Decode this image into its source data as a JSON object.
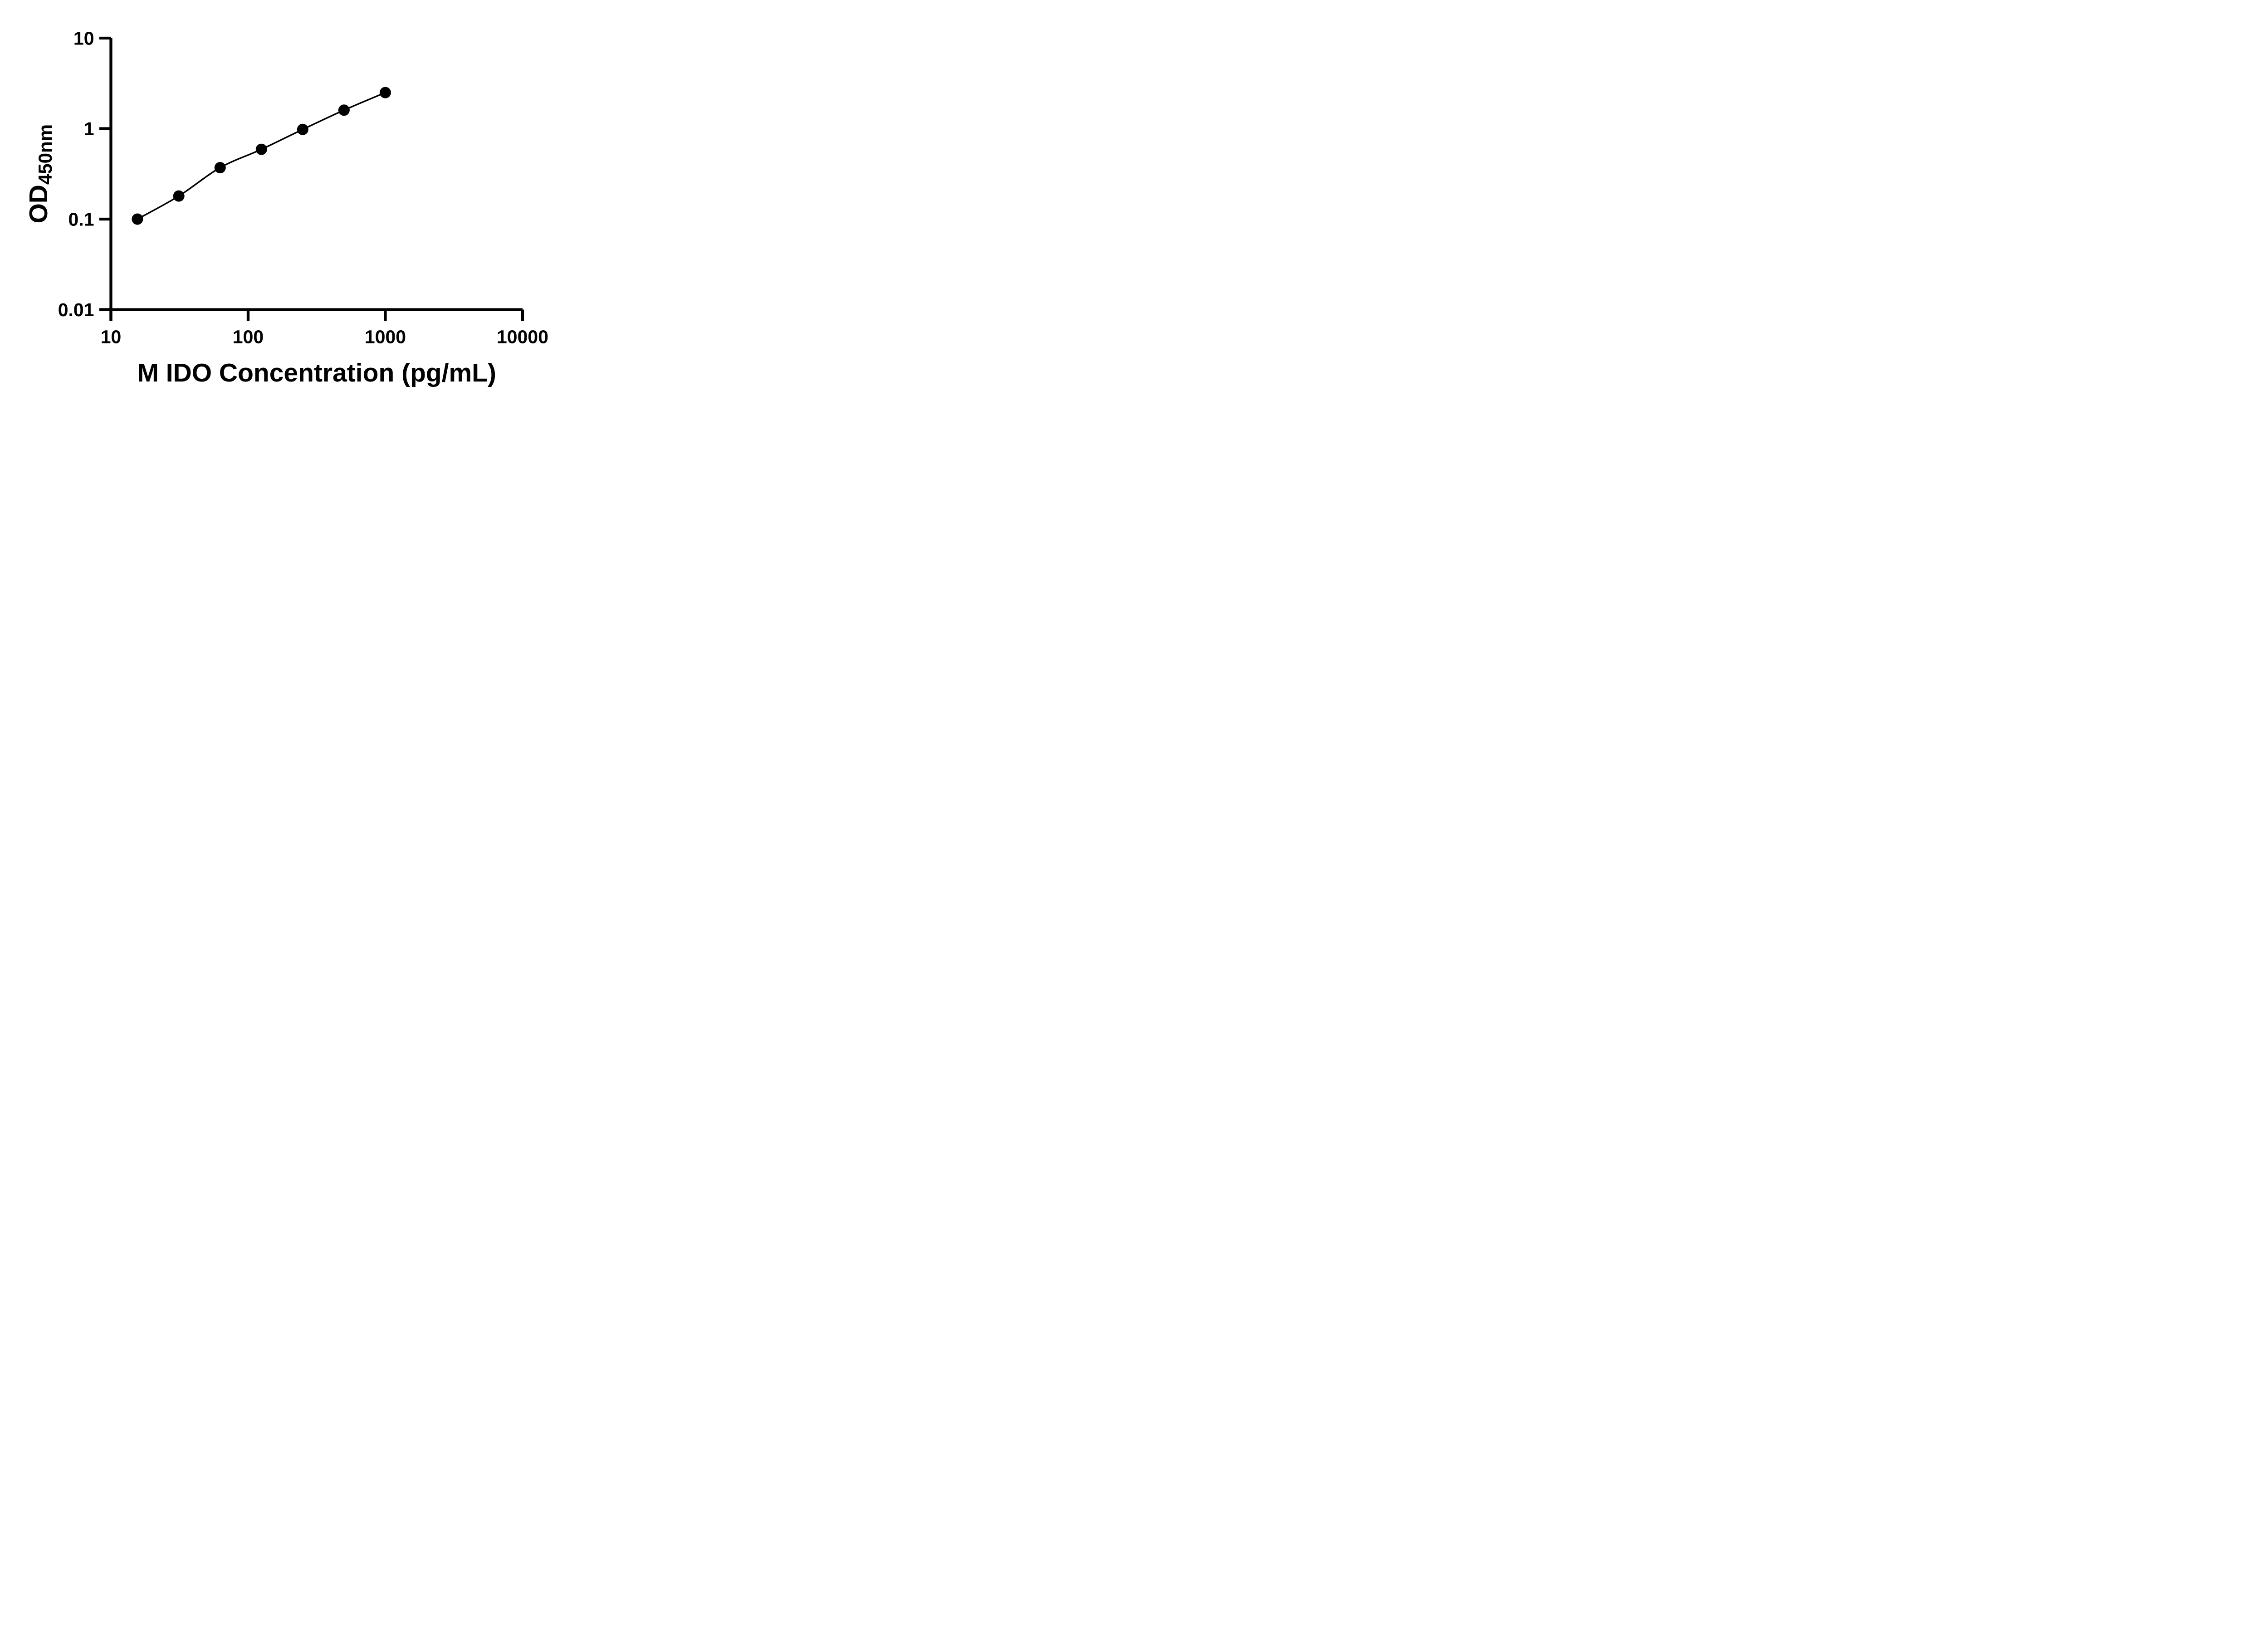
{
  "figure": {
    "background": "#ffffff",
    "ink": "#000000"
  },
  "chart_data": {
    "type": "line",
    "subtype": "elisa-standard-curve-scatter-line",
    "title": "",
    "xlabel": "M IDO Concentration (pg/mL)",
    "ylabel_main": "OD",
    "ylabel_sub": "450nm",
    "x_scale": "log10",
    "y_scale": "log10",
    "xlim": [
      10,
      10000
    ],
    "ylim": [
      0.01,
      10
    ],
    "x_ticks": [
      10,
      100,
      1000,
      10000
    ],
    "x_tick_labels": [
      "10",
      "100",
      "1000",
      "10000"
    ],
    "y_ticks": [
      10,
      1,
      0.1,
      0.01
    ],
    "y_tick_labels": [
      "10",
      "1",
      "0.1",
      "0.01"
    ],
    "grid": false,
    "legend": false,
    "marker": "filled-circle",
    "marker_color": "#000000",
    "line_color": "#000000",
    "series": [
      {
        "points": [
          {
            "x": 15.6,
            "y": 0.1
          },
          {
            "x": 31.25,
            "y": 0.18
          },
          {
            "x": 62.5,
            "y": 0.37
          },
          {
            "x": 125,
            "y": 0.59
          },
          {
            "x": 250,
            "y": 0.98
          },
          {
            "x": 500,
            "y": 1.6
          },
          {
            "x": 1000,
            "y": 2.5
          }
        ]
      }
    ]
  }
}
